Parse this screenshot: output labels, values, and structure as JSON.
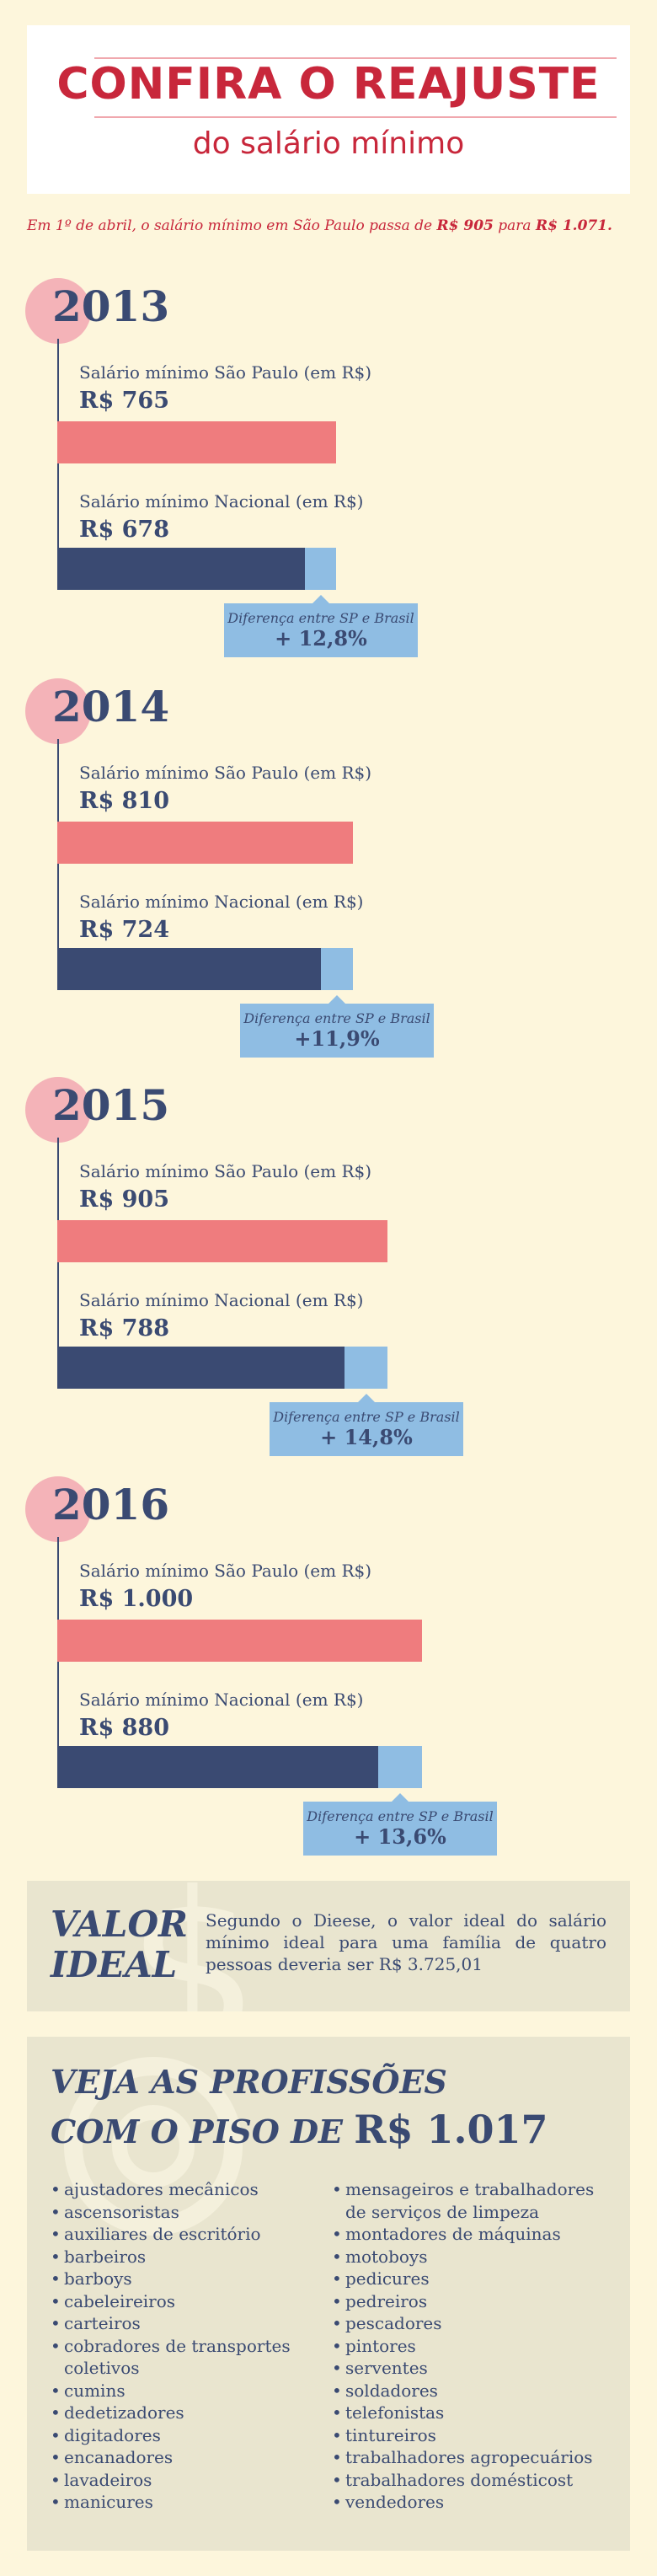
{
  "header": {
    "title": "CONFIRA O REAJUSTE",
    "subtitle": "do salário mínimo"
  },
  "intro": {
    "text_before": "Em 1º de abril, o salário mínimo em São Paulo passa de ",
    "from_value": "R$ 905",
    "text_middle": " para ",
    "to_value": "R$ 1.071."
  },
  "chart_data": {
    "type": "bar",
    "categories": [
      "2013",
      "2014",
      "2015",
      "2016"
    ],
    "series": [
      {
        "name": "Salário mínimo São Paulo (em R$)",
        "values": [
          765,
          810,
          905,
          1000
        ],
        "color": "#ef7c7e"
      },
      {
        "name": "Salário mínimo Nacional (em R$)",
        "values": [
          678,
          724,
          788,
          880
        ],
        "color": "#3a4a72"
      }
    ],
    "difference_color": "#8fbde3",
    "difference_label": "Diferença entre SP e Brasil",
    "years": [
      {
        "year": "2013",
        "sp_label": "Salário mínimo São Paulo (em R$)",
        "sp_value_text": "R$ 765",
        "br_label": "Salário mínimo Nacional (em R$)",
        "br_value_text": "R$ 678",
        "diff_text": "+ 12,8%"
      },
      {
        "year": "2014",
        "sp_label": "Salário mínimo São Paulo (em R$)",
        "sp_value_text": "R$ 810",
        "br_label": "Salário mínimo Nacional (em R$)",
        "br_value_text": "R$ 724",
        "diff_text": "+11,9%"
      },
      {
        "year": "2015",
        "sp_label": "Salário mínimo São Paulo (em R$)",
        "sp_value_text": "R$ 905",
        "br_label": "Salário mínimo Nacional (em R$)",
        "br_value_text": "R$ 788",
        "diff_text": "+ 14,8%"
      },
      {
        "year": "2016",
        "sp_label": "Salário mínimo São Paulo (em R$)",
        "sp_value_text": "R$ 1.000",
        "br_label": "Salário mínimo Nacional (em R$)",
        "br_value_text": "R$ 880",
        "diff_text": "+ 13,6%"
      }
    ]
  },
  "valor_ideal": {
    "title_line1": "VALOR",
    "title_line2": "IDEAL",
    "text": "Segundo o Dieese, o valor ideal do salário mínimo ideal para uma família de quatro pessoas deveria ser R$ 3.725,01"
  },
  "profissoes": {
    "title_line1": "VEJA AS PROFISSÕES",
    "title_line2_prefix": "COM O PISO DE ",
    "title_value": "R$ 1.017",
    "left_items": [
      "ajustadores mecânicos",
      "ascensoristas",
      "auxiliares de escritório",
      "barbeiros",
      "barboys",
      "cabeleireiros",
      "carteiros",
      "cobradores de transportes coletivos",
      "cumins",
      "dedetizadores",
      "digitadores",
      "encanadores",
      "lavadeiros",
      "manicures"
    ],
    "right_items": [
      "mensageiros e trabalhadores de serviços de limpeza",
      "montadores de máquinas",
      "motoboys",
      "pedicures",
      "pedreiros",
      "pescadores",
      "pintores",
      "serventes",
      "soldadores",
      "telefonistas",
      "tintureiros",
      "trabalhadores agropecuários",
      "trabalhadores domésticost",
      "vendedores"
    ]
  }
}
